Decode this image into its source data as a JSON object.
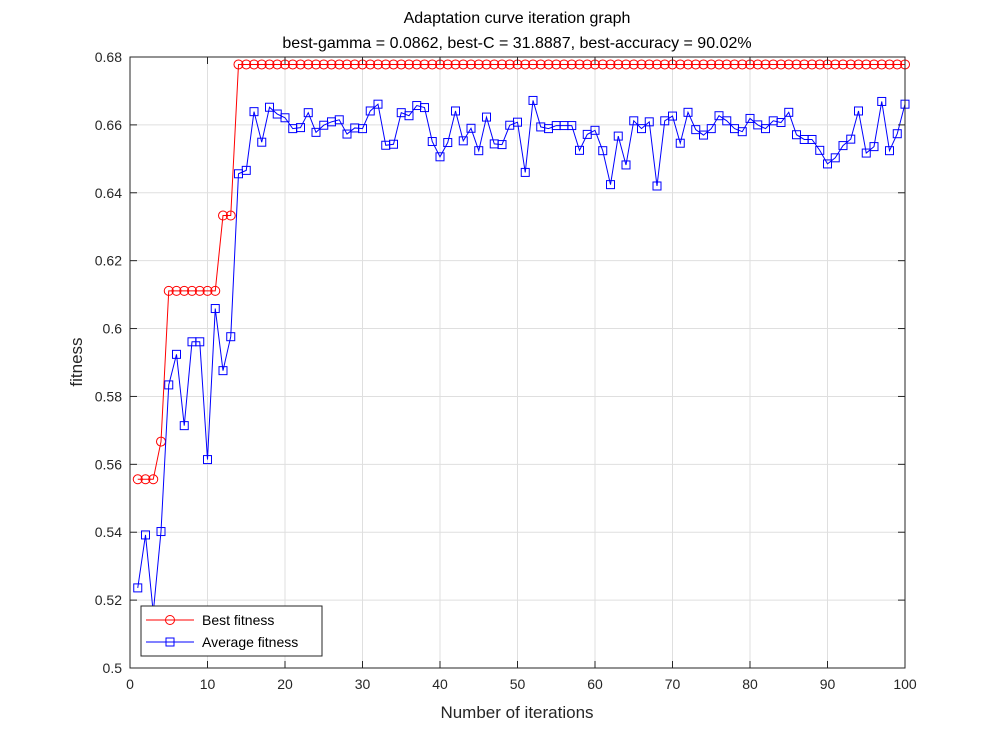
{
  "chart_data": {
    "type": "line",
    "title": "Adaptation curve iteration graph",
    "subtitle": "best-gamma = 0.0862, best-C = 31.8887, best-accuracy = 90.02%",
    "xlabel": "Number of iterations",
    "ylabel": "fitness",
    "xlim": [
      0,
      100
    ],
    "ylim": [
      0.5,
      0.68
    ],
    "xticks": [
      0,
      10,
      20,
      30,
      40,
      50,
      60,
      70,
      80,
      90,
      100
    ],
    "xtick_labels": [
      "0",
      "10",
      "20",
      "30",
      "40",
      "50",
      "60",
      "70",
      "80",
      "90",
      "100"
    ],
    "yticks": [
      0.5,
      0.52,
      0.54,
      0.56,
      0.58,
      0.6,
      0.62,
      0.64,
      0.66,
      0.68
    ],
    "ytick_labels": [
      "0.5",
      "0.52",
      "0.54",
      "0.56",
      "0.58",
      "0.6",
      "0.62",
      "0.64",
      "0.66",
      "0.68"
    ],
    "grid": true,
    "legend_position": "bottom-left",
    "x": [
      1,
      2,
      3,
      4,
      5,
      6,
      7,
      8,
      9,
      10,
      11,
      12,
      13,
      14,
      15,
      16,
      17,
      18,
      19,
      20,
      21,
      22,
      23,
      24,
      25,
      26,
      27,
      28,
      29,
      30,
      31,
      32,
      33,
      34,
      35,
      36,
      37,
      38,
      39,
      40,
      41,
      42,
      43,
      44,
      45,
      46,
      47,
      48,
      49,
      50,
      51,
      52,
      53,
      54,
      55,
      56,
      57,
      58,
      59,
      60,
      61,
      62,
      63,
      64,
      65,
      66,
      67,
      68,
      69,
      70,
      71,
      72,
      73,
      74,
      75,
      76,
      77,
      78,
      79,
      80,
      81,
      82,
      83,
      84,
      85,
      86,
      87,
      88,
      89,
      90,
      91,
      92,
      93,
      94,
      95,
      96,
      97,
      98,
      99,
      100
    ],
    "series": [
      {
        "name": "Best fitness",
        "color": "#ff0000",
        "marker": "circle",
        "values": [
          0.5556,
          0.5556,
          0.5556,
          0.5667,
          0.6111,
          0.6111,
          0.6111,
          0.6111,
          0.6111,
          0.6111,
          0.6111,
          0.6333,
          0.6333,
          0.6778,
          0.6778,
          0.6778,
          0.6778,
          0.6778,
          0.6778,
          0.6778,
          0.6778,
          0.6778,
          0.6778,
          0.6778,
          0.6778,
          0.6778,
          0.6778,
          0.6778,
          0.6778,
          0.6778,
          0.6778,
          0.6778,
          0.6778,
          0.6778,
          0.6778,
          0.6778,
          0.6778,
          0.6778,
          0.6778,
          0.6778,
          0.6778,
          0.6778,
          0.6778,
          0.6778,
          0.6778,
          0.6778,
          0.6778,
          0.6778,
          0.6778,
          0.6778,
          0.6778,
          0.6778,
          0.6778,
          0.6778,
          0.6778,
          0.6778,
          0.6778,
          0.6778,
          0.6778,
          0.6778,
          0.6778,
          0.6778,
          0.6778,
          0.6778,
          0.6778,
          0.6778,
          0.6778,
          0.6778,
          0.6778,
          0.6778,
          0.6778,
          0.6778,
          0.6778,
          0.6778,
          0.6778,
          0.6778,
          0.6778,
          0.6778,
          0.6778,
          0.6778,
          0.6778,
          0.6778,
          0.6778,
          0.6778,
          0.6778,
          0.6778,
          0.6778,
          0.6778,
          0.6778,
          0.6778,
          0.6778,
          0.6778,
          0.6778,
          0.6778,
          0.6778,
          0.6778,
          0.6778,
          0.6778,
          0.6778,
          0.6778
        ]
      },
      {
        "name": "Average fitness",
        "color": "#0000ff",
        "marker": "square",
        "values": [
          0.5236,
          0.5392,
          0.5163,
          0.5402,
          0.5834,
          0.5924,
          0.5714,
          0.5961,
          0.5961,
          0.5614,
          0.6059,
          0.5876,
          0.5976,
          0.6456,
          0.6466,
          0.6639,
          0.6549,
          0.6652,
          0.6632,
          0.6621,
          0.6589,
          0.6592,
          0.6636,
          0.6578,
          0.6599,
          0.6609,
          0.6615,
          0.6573,
          0.6591,
          0.6589,
          0.6641,
          0.6661,
          0.654,
          0.6543,
          0.6636,
          0.6627,
          0.6657,
          0.6651,
          0.6551,
          0.6506,
          0.6548,
          0.6641,
          0.6553,
          0.659,
          0.6524,
          0.6623,
          0.6544,
          0.6542,
          0.6599,
          0.6608,
          0.646,
          0.6672,
          0.6594,
          0.6589,
          0.6598,
          0.6598,
          0.6598,
          0.6525,
          0.6572,
          0.6584,
          0.6524,
          0.6424,
          0.6567,
          0.6482,
          0.6612,
          0.6589,
          0.6609,
          0.642,
          0.6612,
          0.6626,
          0.6546,
          0.6637,
          0.6586,
          0.657,
          0.6589,
          0.6627,
          0.6612,
          0.6589,
          0.658,
          0.6619,
          0.66,
          0.6589,
          0.6612,
          0.6607,
          0.6637,
          0.6571,
          0.6557,
          0.6557,
          0.6525,
          0.6485,
          0.6503,
          0.6539,
          0.6558,
          0.6641,
          0.6517,
          0.6536,
          0.6669,
          0.6524,
          0.6574,
          0.6661
        ]
      }
    ]
  }
}
